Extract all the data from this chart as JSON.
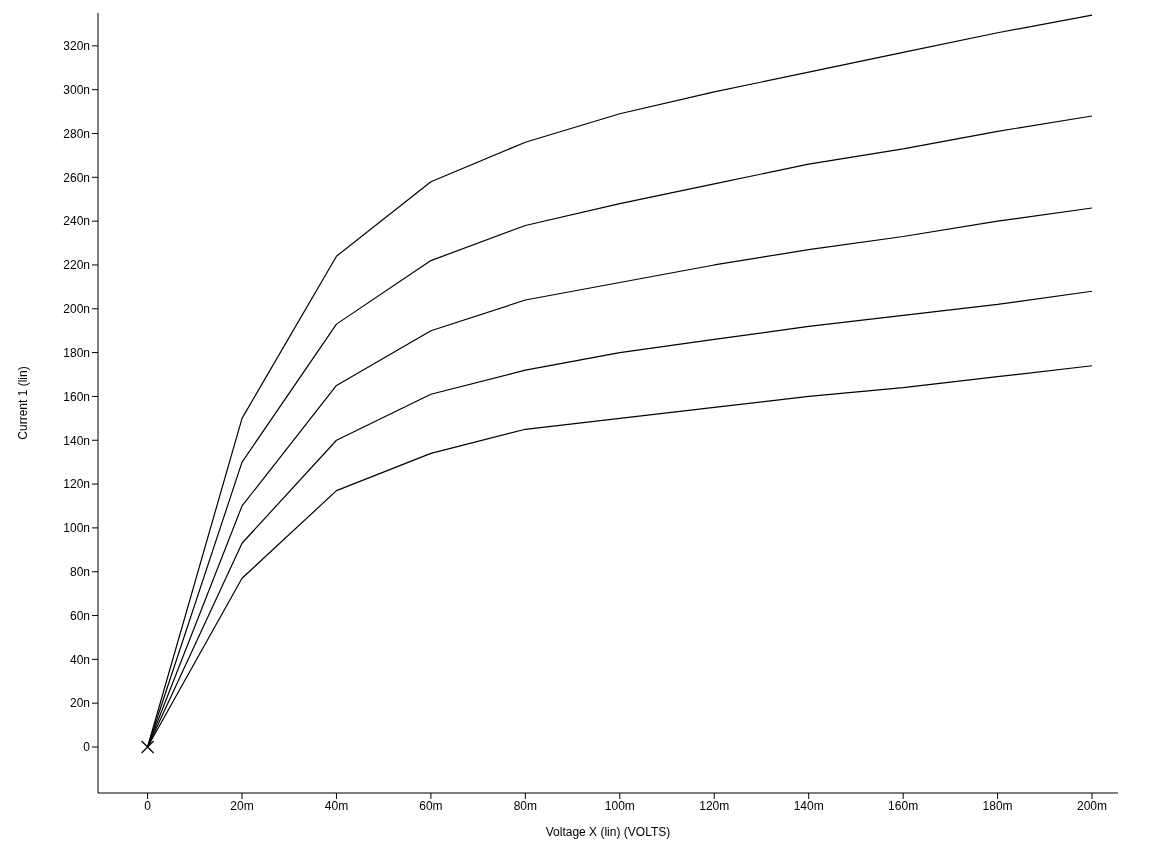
{
  "chart_data": {
    "type": "line",
    "xlabel": "Voltage X (lin) (VOLTS)",
    "ylabel": "Current 1 (lin)",
    "x": [
      0,
      20,
      40,
      60,
      80,
      100,
      120,
      140,
      160,
      180,
      200
    ],
    "series": [
      {
        "color": "#000000",
        "values": [
          0,
          150,
          224,
          258,
          276,
          289,
          299,
          308,
          317,
          326,
          334
        ]
      },
      {
        "color": "#000000",
        "values": [
          0,
          130,
          193,
          222,
          238,
          248,
          257,
          266,
          273,
          281,
          288
        ]
      },
      {
        "color": "#000000",
        "values": [
          0,
          110,
          165,
          190,
          204,
          212,
          220,
          227,
          233,
          240,
          246
        ]
      },
      {
        "color": "#000000",
        "values": [
          0,
          93,
          140,
          161,
          172,
          180,
          186,
          192,
          197,
          202,
          208
        ]
      },
      {
        "color": "#000000",
        "values": [
          0,
          77,
          117,
          134,
          145,
          150,
          155,
          160,
          164,
          169,
          174
        ]
      },
      {
        "type": "scatter",
        "color": "#000000",
        "marker": "cross",
        "x": [
          0
        ],
        "values": [
          0
        ]
      }
    ],
    "xlim": [
      -10.5,
      205.5
    ],
    "xticks": [
      0,
      {
        "value": 20,
        "label": "20m"
      },
      {
        "value": 40,
        "label": "40m"
      },
      {
        "value": 60,
        "label": "60m"
      },
      {
        "value": 80,
        "label": "80m"
      },
      {
        "value": 100,
        "label": "100m"
      },
      {
        "value": 120,
        "label": "120m"
      },
      {
        "value": 140,
        "label": "140m"
      },
      {
        "value": 160,
        "label": "160m"
      },
      {
        "value": 180,
        "label": "180m"
      },
      {
        "value": 200,
        "label": "200m"
      }
    ],
    "ylim": [
      -21,
      335
    ],
    "yticks": [
      0,
      {
        "value": 20,
        "label": "20n"
      },
      {
        "value": 40,
        "label": "40n"
      },
      {
        "value": 60,
        "label": "60n"
      },
      {
        "value": 80,
        "label": "80n"
      },
      {
        "value": 100,
        "label": "100n"
      },
      {
        "value": 120,
        "label": "120n"
      },
      {
        "value": 140,
        "label": "140n"
      },
      {
        "value": 160,
        "label": "160n"
      },
      {
        "value": 180,
        "label": "180n"
      },
      {
        "value": 200,
        "label": "200n"
      },
      {
        "value": 220,
        "label": "220n"
      },
      {
        "value": 240,
        "label": "240n"
      },
      {
        "value": 260,
        "label": "260n"
      },
      {
        "value": 280,
        "label": "280n"
      },
      {
        "value": 300,
        "label": "300n"
      },
      {
        "value": 320,
        "label": "320n"
      }
    ],
    "grid": false,
    "legend": false
  }
}
